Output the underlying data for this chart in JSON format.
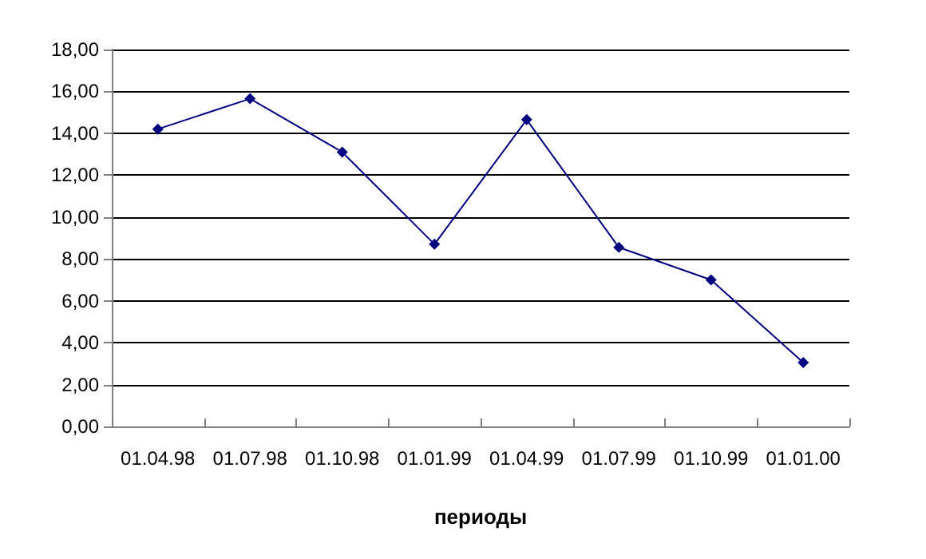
{
  "chart_data": {
    "type": "line",
    "xlabel": "периоды",
    "categories": [
      "01.04.98",
      "01.07.98",
      "01.10.98",
      "01.01.99",
      "01.04.99",
      "01.07.99",
      "01.10.99",
      "01.01.00"
    ],
    "series": [
      {
        "color": "#000080",
        "values": [
          14.2,
          15.65,
          13.1,
          8.7,
          14.65,
          8.55,
          7.0,
          3.05
        ]
      }
    ],
    "ylim": [
      0,
      18
    ],
    "yticks": [
      {
        "value": 0,
        "label": "0,00"
      },
      {
        "value": 2,
        "label": "2,00"
      },
      {
        "value": 4,
        "label": "4,00"
      },
      {
        "value": 6,
        "label": "6,00"
      },
      {
        "value": 8,
        "label": "8,00"
      },
      {
        "value": 10,
        "label": "10,00"
      },
      {
        "value": 12,
        "label": "12,00"
      },
      {
        "value": 14,
        "label": "14,00"
      },
      {
        "value": 16,
        "label": "16,00"
      },
      {
        "value": 18,
        "label": "18,00"
      }
    ],
    "grid": "y",
    "marker": "diamond",
    "line_style": "solid"
  }
}
